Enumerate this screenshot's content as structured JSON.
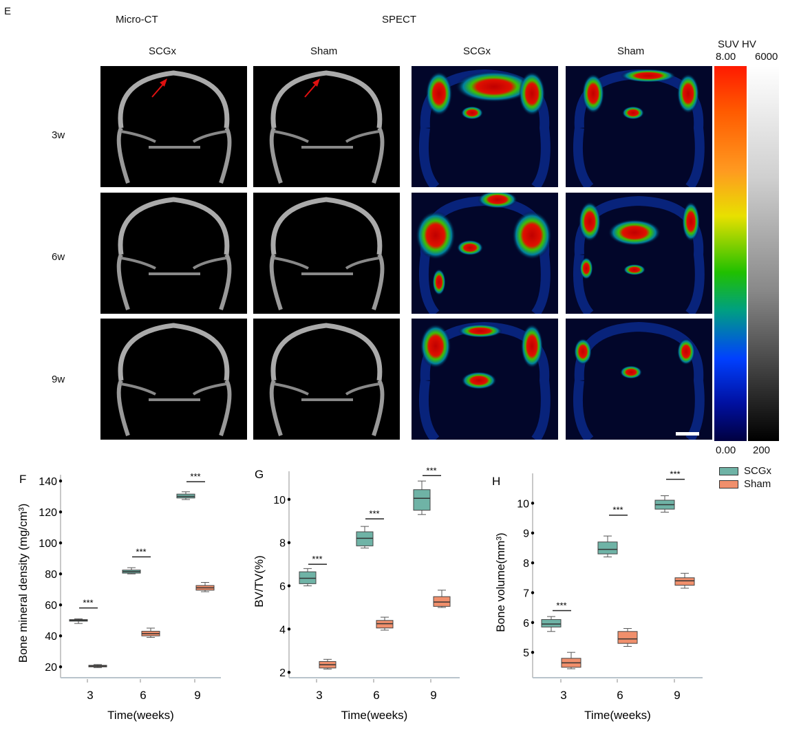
{
  "panel_E": {
    "letter": "E",
    "section_microct": "Micro-CT",
    "section_spect": "SPECT",
    "columns": [
      "SCGx",
      "Sham",
      "SCGx",
      "Sham"
    ],
    "rows": [
      "3w",
      "6w",
      "9w"
    ],
    "colorbar": {
      "title": "SUV HV",
      "suv_max": "8.00",
      "hv_max": "6000",
      "suv_min": "0.00",
      "hv_min": "200"
    }
  },
  "legend": {
    "items": [
      {
        "label": "SCGx",
        "color": "#6fb3a6"
      },
      {
        "label": "Sham",
        "color": "#f08f6c"
      }
    ]
  },
  "chart_data": [
    {
      "type": "box",
      "letter": "F",
      "xlabel": "Time(weeks)",
      "ylabel": "Bone mineral density (mg/cm³)",
      "categories": [
        "3",
        "6",
        "9"
      ],
      "yticks": [
        20,
        40,
        60,
        80,
        100,
        120,
        140
      ],
      "ylim": [
        13,
        144
      ],
      "significance": [
        {
          "category": "3",
          "label": "***",
          "y": 58
        },
        {
          "category": "6",
          "label": "***",
          "y": 91
        },
        {
          "category": "9",
          "label": "***",
          "y": 139.5
        }
      ],
      "series": [
        {
          "name": "SCGx",
          "boxes": [
            [
              48,
              49.5,
              50,
              50.5,
              51
            ],
            [
              80,
              80.5,
              81.5,
              82.5,
              84
            ],
            [
              128,
              129,
              130,
              131.5,
              133
            ]
          ]
        },
        {
          "name": "Sham",
          "boxes": [
            [
              19.5,
              20,
              20.5,
              21,
              21.5
            ],
            [
              39,
              40,
              41.5,
              43,
              45
            ],
            [
              68.5,
              69.5,
              71,
              72.5,
              74.5
            ]
          ]
        }
      ]
    },
    {
      "type": "box",
      "letter": "G",
      "xlabel": "Time(weeks)",
      "ylabel": "BV/TV(%)",
      "categories": [
        "3",
        "6",
        "9"
      ],
      "yticks": [
        2,
        4,
        6,
        8,
        10
      ],
      "ylim": [
        1.75,
        11.3
      ],
      "significance": [
        {
          "category": "3",
          "label": "***",
          "y": 7.0
        },
        {
          "category": "6",
          "label": "***",
          "y": 9.1
        },
        {
          "category": "9",
          "label": "***",
          "y": 11.1
        }
      ],
      "series": [
        {
          "name": "SCGx",
          "boxes": [
            [
              6.0,
              6.1,
              6.35,
              6.65,
              6.8
            ],
            [
              7.75,
              7.85,
              8.2,
              8.5,
              8.75
            ],
            [
              9.3,
              9.5,
              10.05,
              10.45,
              10.85
            ]
          ]
        },
        {
          "name": "Sham",
          "boxes": [
            [
              2.15,
              2.2,
              2.35,
              2.5,
              2.6
            ],
            [
              3.95,
              4.05,
              4.25,
              4.4,
              4.55
            ],
            [
              5.0,
              5.05,
              5.25,
              5.5,
              5.8
            ]
          ]
        }
      ]
    },
    {
      "type": "box",
      "letter": "H",
      "xlabel": "Time(weeks)",
      "ylabel": "Bone volume(mm³)",
      "categories": [
        "3",
        "6",
        "9"
      ],
      "yticks": [
        5,
        6,
        7,
        8,
        9,
        10
      ],
      "ylim": [
        4.15,
        11.0
      ],
      "significance": [
        {
          "category": "3",
          "label": "***",
          "y": 6.4
        },
        {
          "category": "6",
          "label": "***",
          "y": 9.6
        },
        {
          "category": "9",
          "label": "***",
          "y": 10.8
        }
      ],
      "series": [
        {
          "name": "SCGx",
          "boxes": [
            [
              5.7,
              5.85,
              5.95,
              6.1,
              6.2
            ],
            [
              8.2,
              8.3,
              8.45,
              8.7,
              8.9
            ],
            [
              9.7,
              9.8,
              9.95,
              10.1,
              10.25
            ]
          ]
        },
        {
          "name": "Sham",
          "boxes": [
            [
              4.45,
              4.5,
              4.65,
              4.8,
              5.0
            ],
            [
              5.2,
              5.3,
              5.45,
              5.7,
              5.8
            ],
            [
              7.15,
              7.25,
              7.4,
              7.5,
              7.65
            ]
          ]
        }
      ]
    }
  ]
}
